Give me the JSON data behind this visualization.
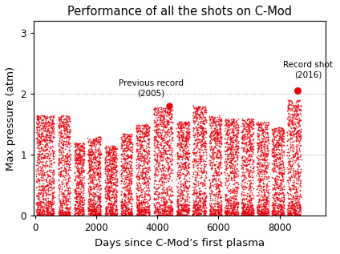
{
  "title": "Performance of all the shots on C-Mod",
  "xlabel": "Days since C-Mod’s first plasma",
  "ylabel": "Max pressure (atm)",
  "xlim": [
    -50,
    9500
  ],
  "ylim": [
    0,
    3.2
  ],
  "yticks": [
    0,
    1,
    2,
    3
  ],
  "xticks": [
    0,
    2000,
    4000,
    6000,
    8000
  ],
  "dot_color": "#e8000a",
  "bg_color": "#ffffff",
  "previous_record_x": 4390,
  "previous_record_y": 1.8,
  "previous_record_label": "Previous record\n(2005)",
  "record_shot_x": 8580,
  "record_shot_y": 2.05,
  "record_shot_label": "Record shot\n(2016)",
  "hline_y": [
    1.0,
    2.0
  ],
  "hline_color": "#b0b0b0",
  "seed": 42,
  "run_campaigns": [
    {
      "start": 30,
      "end": 620,
      "peak": 1.65,
      "n": 900
    },
    {
      "start": 750,
      "end": 1150,
      "peak": 1.65,
      "n": 600
    },
    {
      "start": 1280,
      "end": 1600,
      "peak": 1.2,
      "n": 500
    },
    {
      "start": 1720,
      "end": 2150,
      "peak": 1.3,
      "n": 650
    },
    {
      "start": 2280,
      "end": 2680,
      "peak": 1.15,
      "n": 600
    },
    {
      "start": 2800,
      "end": 3180,
      "peak": 1.35,
      "n": 550
    },
    {
      "start": 3300,
      "end": 3750,
      "peak": 1.5,
      "n": 650
    },
    {
      "start": 3880,
      "end": 4500,
      "peak": 1.78,
      "n": 900
    },
    {
      "start": 4630,
      "end": 5050,
      "peak": 1.55,
      "n": 650
    },
    {
      "start": 5150,
      "end": 5600,
      "peak": 1.8,
      "n": 700
    },
    {
      "start": 5700,
      "end": 6100,
      "peak": 1.65,
      "n": 620
    },
    {
      "start": 6200,
      "end": 6650,
      "peak": 1.6,
      "n": 680
    },
    {
      "start": 6750,
      "end": 7150,
      "peak": 1.6,
      "n": 620
    },
    {
      "start": 7250,
      "end": 7650,
      "peak": 1.55,
      "n": 580
    },
    {
      "start": 7750,
      "end": 8150,
      "peak": 1.45,
      "n": 600
    },
    {
      "start": 8250,
      "end": 8700,
      "peak": 1.9,
      "n": 700
    }
  ]
}
